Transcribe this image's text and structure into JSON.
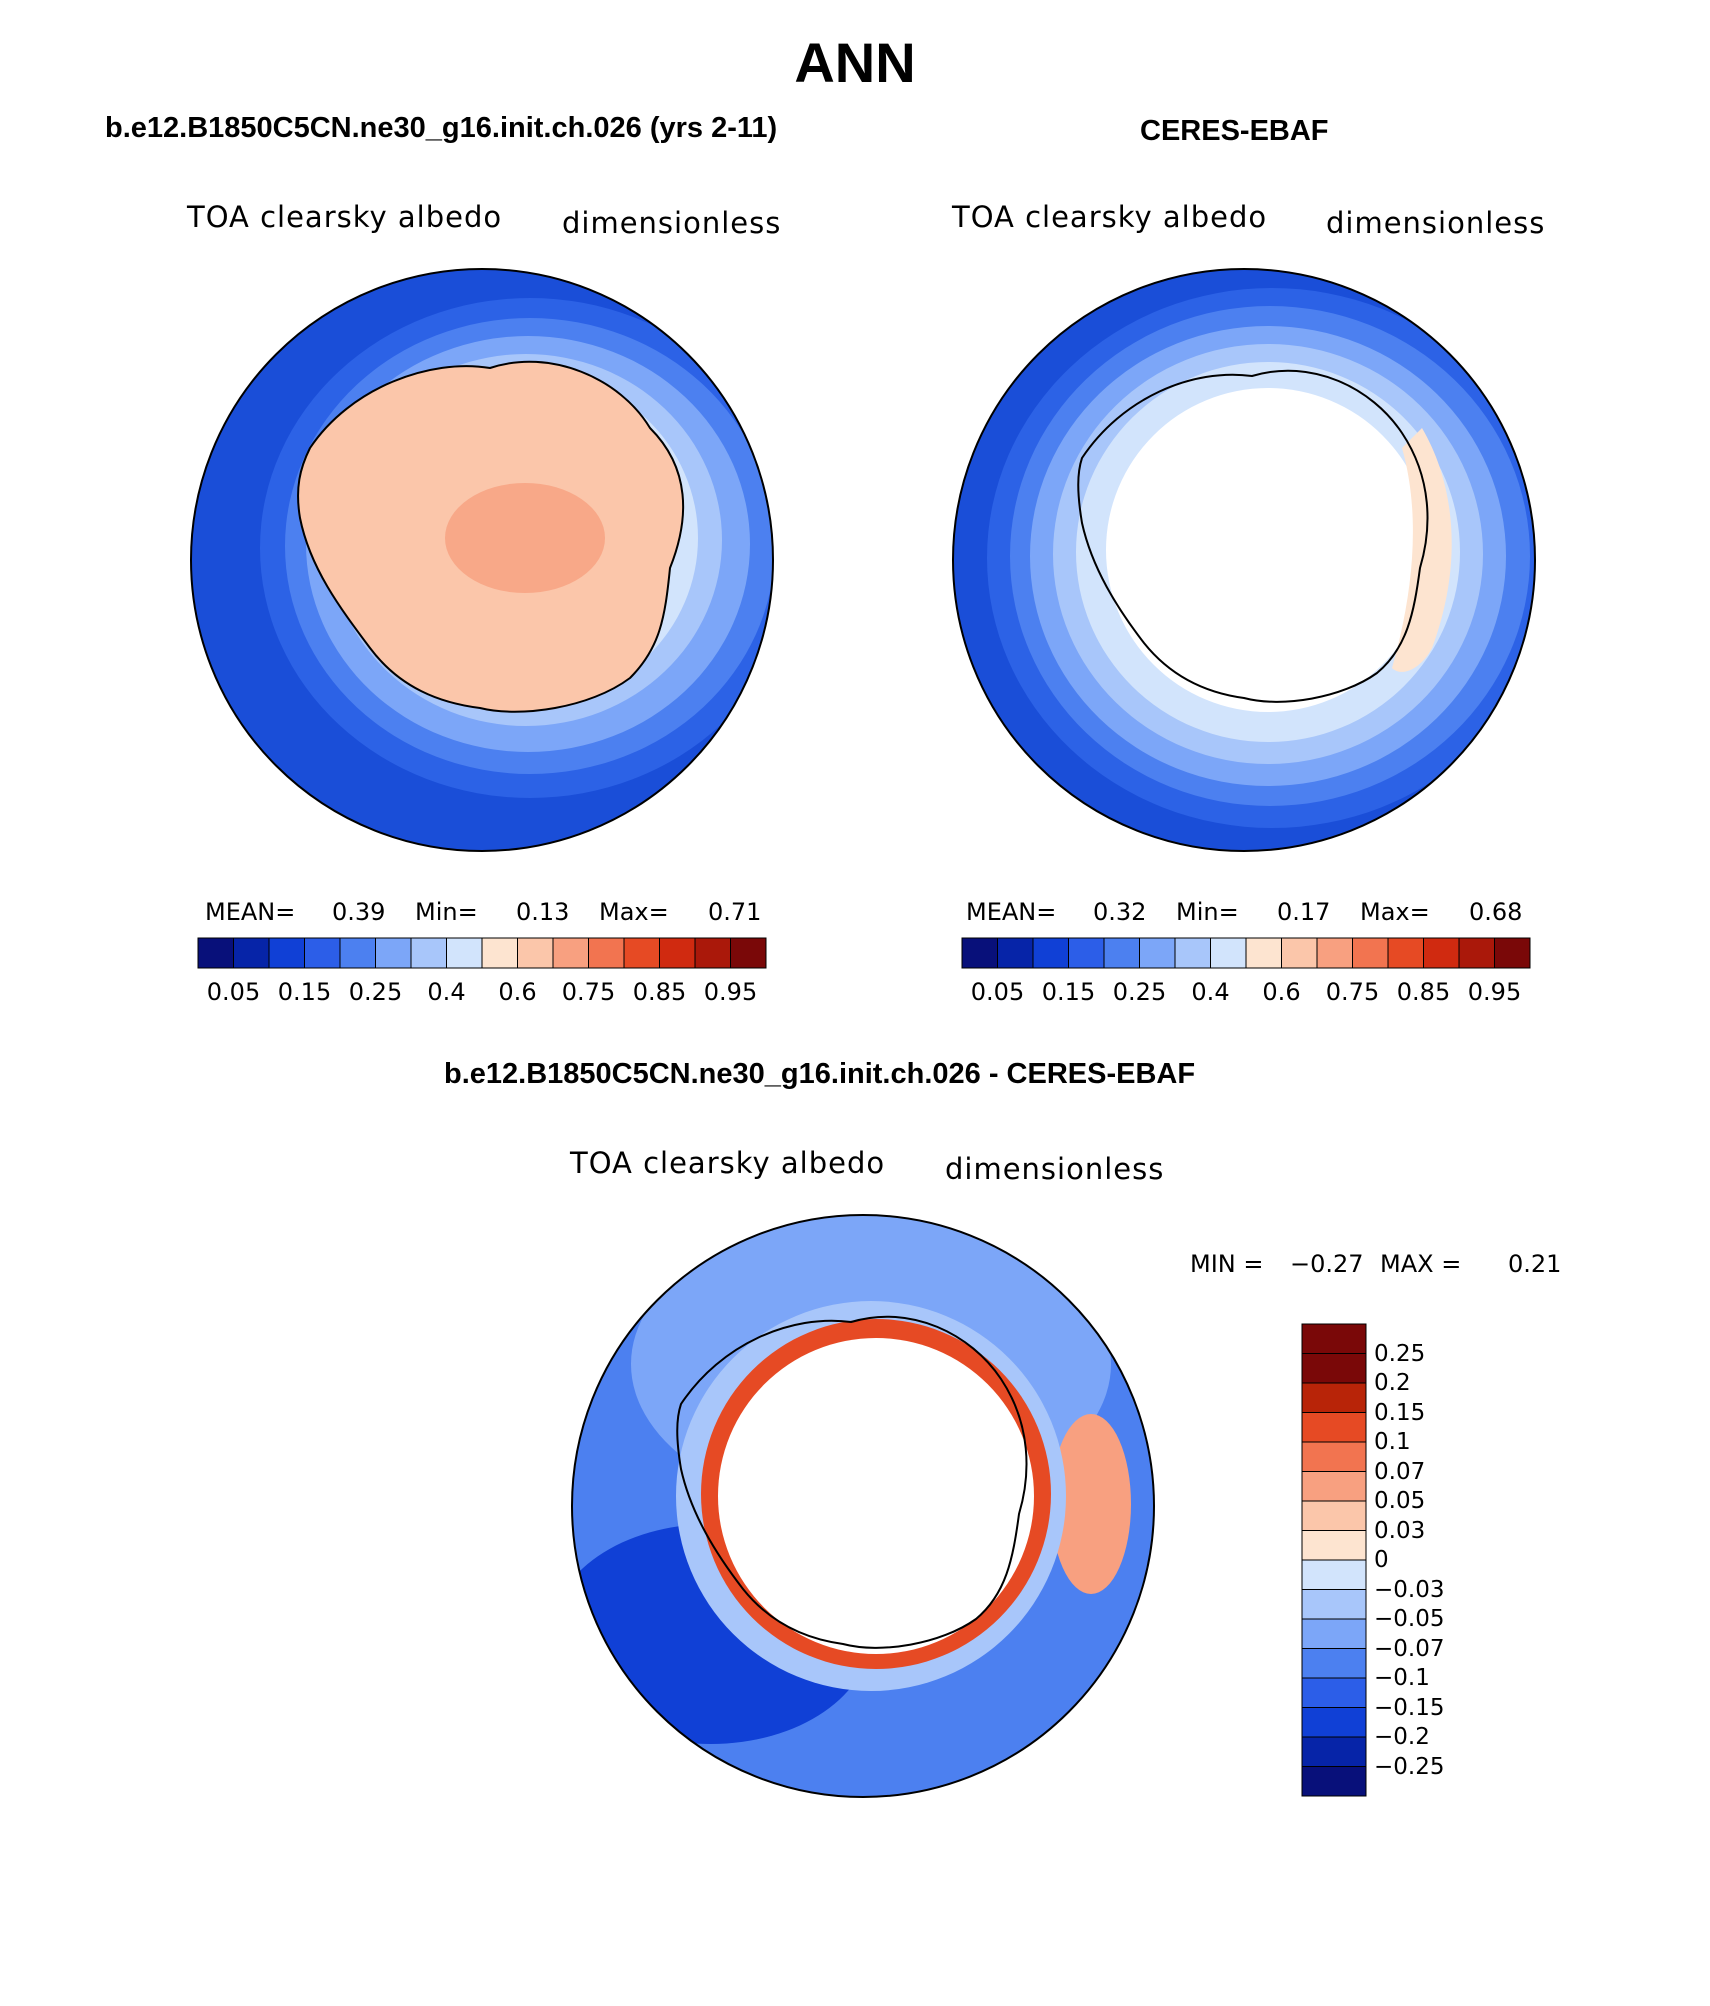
{
  "page_title": "ANN",
  "colors": {
    "seq_scale": [
      "#08107a",
      "#0624a8",
      "#1040d6",
      "#2c5ee8",
      "#4c80f0",
      "#7ca6f8",
      "#a8c6fa",
      "#d2e4fc",
      "#fde4d0",
      "#fbc6aa",
      "#f8a080",
      "#f27450",
      "#e64a24",
      "#d02a10",
      "#aa180a",
      "#7a0808"
    ],
    "diff_scale": [
      "#08107a",
      "#0624a8",
      "#1040d6",
      "#2c5ee8",
      "#4c80f0",
      "#7ca6f8",
      "#a8c6fa",
      "#d2e4fc",
      "#fde4d0",
      "#fbc6aa",
      "#f8a080",
      "#f27450",
      "#e64a24",
      "#b82408",
      "#7a0808"
    ],
    "outline": "#000000"
  },
  "panels": {
    "model": {
      "heading": "b.e12.B1850C5CN.ne30_g16.init.ch.026 (yrs 2-11)",
      "variable": "TOA clearsky albedo",
      "units": "dimensionless",
      "stats": {
        "mean_label": "MEAN=",
        "mean_value": "0.39",
        "min_label": "Min=",
        "min_value": "0.13",
        "max_label": "Max=",
        "max_value": "0.71"
      },
      "colorbar_labels": [
        "0.05",
        "0.15",
        "0.25",
        "0.4",
        "0.6",
        "0.75",
        "0.85",
        "0.95"
      ]
    },
    "obs": {
      "heading": "CERES-EBAF",
      "variable": "TOA clearsky albedo",
      "units": "dimensionless",
      "stats": {
        "mean_label": "MEAN=",
        "mean_value": "0.32",
        "min_label": "Min=",
        "min_value": "0.17",
        "max_label": "Max=",
        "max_value": "0.68"
      },
      "colorbar_labels": [
        "0.05",
        "0.15",
        "0.25",
        "0.4",
        "0.6",
        "0.75",
        "0.85",
        "0.95"
      ]
    },
    "diff": {
      "heading": "b.e12.B1850C5CN.ne30_g16.init.ch.026 - CERES-EBAF",
      "variable": "TOA clearsky albedo",
      "units": "dimensionless",
      "minmax": {
        "min_label": "MIN =",
        "min_value": "−0.27",
        "max_label": "MAX =",
        "max_value": "0.21"
      },
      "colorbar_labels": [
        "0.25",
        "0.2",
        "0.15",
        "0.1",
        "0.07",
        "0.05",
        "0.03",
        "0",
        "−0.03",
        "−0.05",
        "−0.07",
        "−0.1",
        "−0.15",
        "−0.2",
        "−0.25"
      ]
    }
  }
}
